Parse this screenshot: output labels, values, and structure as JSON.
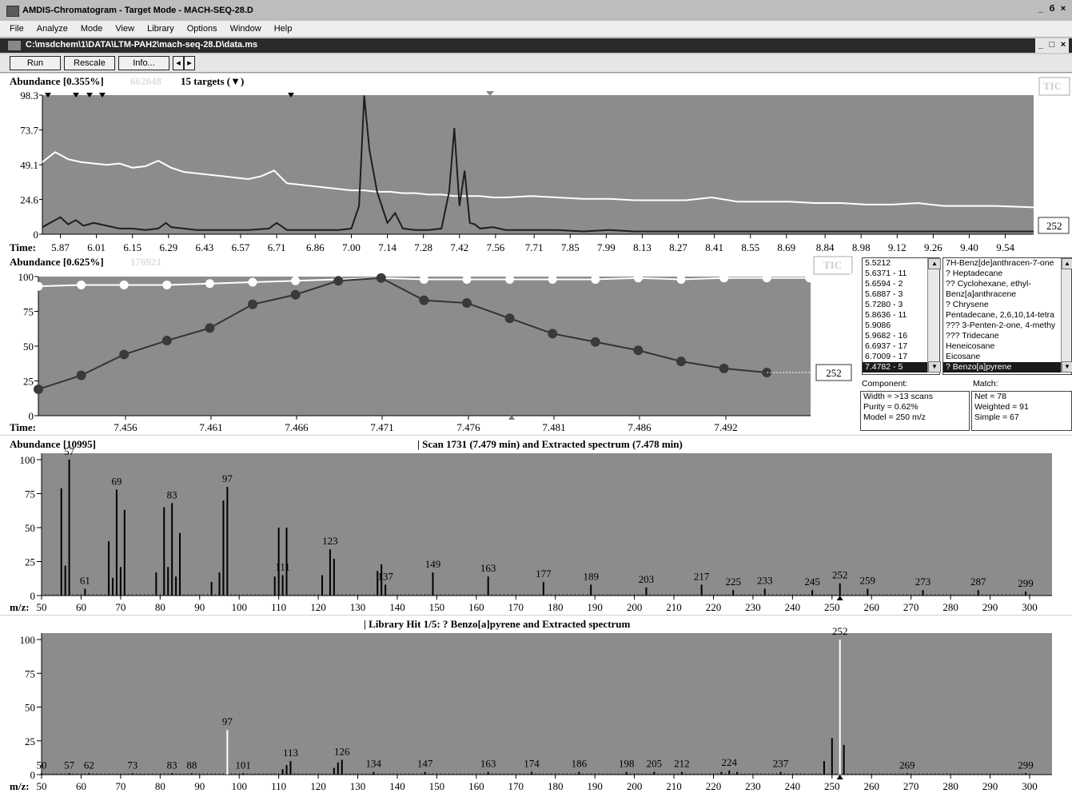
{
  "app": {
    "title": "AMDIS-Chromatogram - Target Mode - MACH-SEQ-28.D",
    "window_buttons": [
      "_",
      "б",
      "×"
    ],
    "menu": [
      "File",
      "Analyze",
      "Mode",
      "View",
      "Library",
      "Options",
      "Window",
      "Help"
    ],
    "doc_title": "C:\\msdchem\\1\\DATA\\LTM-PAH2\\mach-seq-28.D\\data.ms",
    "doc_buttons": [
      "_",
      "□",
      "×"
    ],
    "toolbar": {
      "run": "Run",
      "rescale": "Rescale",
      "info": "Info...",
      "left": "◂",
      "right": "▸"
    }
  },
  "chromatogram": {
    "abundance_label": "Abundance [0.355%]",
    "hidden_value": "662048",
    "targets_label": "15 targets (▼)",
    "tic_label": "TIC",
    "ion_box": "252",
    "time_label": "Time:",
    "y_ticks": [
      "98.3",
      "73.7",
      "49.1",
      "24.6",
      "0"
    ],
    "x_ticks": [
      "5.87",
      "6.01",
      "6.15",
      "6.29",
      "6.43",
      "6.57",
      "6.71",
      "6.86",
      "7.00",
      "7.14",
      "7.28",
      "7.42",
      "7.56",
      "7.71",
      "7.85",
      "7.99",
      "8.13",
      "8.27",
      "8.41",
      "8.55",
      "8.69",
      "8.84",
      "8.98",
      "9.12",
      "9.26",
      "9.40",
      "9.54"
    ]
  },
  "profile": {
    "abundance_label": "Abundance [0.625%]",
    "hidden_value": "176921",
    "tic_label": "TIC",
    "ion_box": "252",
    "time_label": "Time:",
    "y_ticks": [
      "100",
      "75",
      "50",
      "25",
      "0"
    ],
    "x_ticks": [
      "7.456",
      "7.461",
      "7.466",
      "7.471",
      "7.476",
      "7.481",
      "7.486",
      "7.492"
    ],
    "white_series": [
      93,
      94,
      94,
      94,
      95,
      96,
      97,
      98,
      99,
      98,
      98,
      98,
      98,
      98,
      99,
      98,
      99,
      99,
      99,
      99
    ],
    "grey_series": [
      19,
      29,
      44,
      54,
      63,
      80,
      87,
      97,
      99,
      83,
      81,
      70,
      59,
      53,
      47,
      39,
      34,
      31
    ]
  },
  "components_list": [
    {
      "label": "5.5212",
      "selected": false
    },
    {
      "label": "5.6371 -  11",
      "selected": false
    },
    {
      "label": "5.6594 -   2",
      "selected": false
    },
    {
      "label": "5.6887 -   3",
      "selected": false
    },
    {
      "label": "5.7280 -   3",
      "selected": false
    },
    {
      "label": "5.8636 -  11",
      "selected": false
    },
    {
      "label": "5.9086",
      "selected": false
    },
    {
      "label": "5.9682 -  16",
      "selected": false
    },
    {
      "label": "6.6937 -  17",
      "selected": false
    },
    {
      "label": "6.7009 -  17",
      "selected": false
    },
    {
      "label": "7.4782 -   5",
      "selected": true
    }
  ],
  "hits_list": [
    {
      "label": "7H-Benz[de]anthracen-7-one",
      "selected": false
    },
    {
      "label": "? Heptadecane",
      "selected": false
    },
    {
      "label": "?? Cyclohexane, ethyl-",
      "selected": false
    },
    {
      "label": "Benz[a]anthracene",
      "selected": false
    },
    {
      "label": "? Chrysene",
      "selected": false
    },
    {
      "label": "Pentadecane, 2,6,10,14-tetra",
      "selected": false
    },
    {
      "label": "??? 3-Penten-2-one, 4-methy",
      "selected": false
    },
    {
      "label": "??? Tridecane",
      "selected": false
    },
    {
      "label": "Heneicosane",
      "selected": false
    },
    {
      "label": "Eicosane",
      "selected": false
    },
    {
      "label": "? Benzo[a]pyrene",
      "selected": true
    }
  ],
  "component_info": {
    "title": "Component:",
    "lines": [
      "Width = >13 scans",
      "Purity = 0.62%",
      "Model = 250 m/z"
    ]
  },
  "match_info": {
    "title": "Match:",
    "lines": [
      "Net = 78",
      "Weighted = 91",
      "Simple = 67"
    ]
  },
  "scan_spectrum": {
    "abundance_label": "Abundance [10995]",
    "title": "| Scan 1731 (7.479 min) and   Extracted spectrum (7.478 min)",
    "mz_label": "m/z:",
    "y_ticks": [
      "100",
      "75",
      "50",
      "25",
      "0"
    ],
    "x_ticks": [
      "50",
      "60",
      "70",
      "80",
      "90",
      "100",
      "110",
      "120",
      "130",
      "140",
      "150",
      "160",
      "170",
      "180",
      "190",
      "200",
      "210",
      "220",
      "230",
      "240",
      "250",
      "260",
      "270",
      "280",
      "290",
      "300"
    ],
    "peak_labels": [
      "57",
      "61",
      "69",
      "83",
      "97",
      "111",
      "123",
      "137",
      "149",
      "163",
      "177",
      "189",
      "203",
      "217",
      "225",
      "233",
      "245",
      "252",
      "259",
      "273",
      "287",
      "299"
    ]
  },
  "library_spectrum": {
    "title": "| Library Hit 1/5:  ? Benzo[a]pyrene and   Extracted spectrum",
    "mz_label": "m/z:",
    "y_ticks": [
      "100",
      "75",
      "50",
      "25",
      "0"
    ],
    "x_ticks": [
      "50",
      "60",
      "70",
      "80",
      "90",
      "100",
      "110",
      "120",
      "130",
      "140",
      "150",
      "160",
      "170",
      "180",
      "190",
      "200",
      "210",
      "220",
      "230",
      "240",
      "250",
      "260",
      "270",
      "280",
      "290",
      "300"
    ],
    "peak_labels": [
      "50",
      "57",
      "62",
      "73",
      "83",
      "88",
      "97",
      "101",
      "113",
      "126",
      "134",
      "147",
      "163",
      "174",
      "186",
      "198",
      "205",
      "212",
      "224",
      "237",
      "252",
      "269",
      "299"
    ]
  },
  "chart_data": [
    {
      "type": "line",
      "title": "",
      "xlabel": "Time:",
      "ylabel": "Abundance [0.355%]",
      "xlim": [
        5.8,
        9.65
      ],
      "ylim": [
        0,
        98.3
      ],
      "series": [
        {
          "name": "",
          "x": [
            5.8,
            5.85,
            5.9,
            5.95,
            6.0,
            6.05,
            6.1,
            6.15,
            6.2,
            6.25,
            6.3,
            6.35,
            6.4,
            6.45,
            6.5,
            6.55,
            6.6,
            6.65,
            6.7,
            6.75,
            6.8,
            6.85,
            6.9,
            6.95,
            7.0,
            7.05,
            7.1,
            7.15,
            7.2,
            7.25,
            7.3,
            7.35,
            7.4,
            7.45,
            7.5,
            7.55,
            7.6,
            7.7,
            7.8,
            7.9,
            8.0,
            8.1,
            8.2,
            8.3,
            8.4,
            8.5,
            8.6,
            8.7,
            8.8,
            8.9,
            9.0,
            9.1,
            9.2,
            9.3,
            9.4,
            9.5,
            9.65
          ],
          "values": [
            51,
            58,
            53,
            51,
            50,
            49,
            50,
            47,
            48,
            52,
            47,
            44,
            43,
            42,
            41,
            40,
            39,
            41,
            45,
            36,
            35,
            34,
            33,
            32,
            31,
            31,
            30,
            30,
            29,
            29,
            28,
            28,
            27,
            27,
            27,
            26,
            26,
            27,
            26,
            25,
            25,
            24,
            24,
            24,
            26,
            23,
            23,
            23,
            22,
            22,
            21,
            21,
            22,
            20,
            20,
            20,
            19
          ]
        },
        {
          "name": "",
          "x": [
            5.8,
            5.85,
            5.87,
            5.9,
            5.93,
            5.96,
            6.0,
            6.05,
            6.1,
            6.15,
            6.2,
            6.25,
            6.28,
            6.3,
            6.35,
            6.4,
            6.5,
            6.6,
            6.68,
            6.71,
            6.75,
            6.85,
            6.95,
            7.0,
            7.03,
            7.05,
            7.07,
            7.1,
            7.14,
            7.17,
            7.2,
            7.25,
            7.3,
            7.35,
            7.38,
            7.4,
            7.42,
            7.44,
            7.46,
            7.48,
            7.5,
            7.55,
            7.6,
            7.7,
            7.8,
            7.9,
            8.0,
            8.1,
            8.2,
            8.3,
            8.4,
            8.5,
            8.6,
            8.7,
            8.8,
            8.9,
            9.0,
            9.1,
            9.2,
            9.3,
            9.4,
            9.5,
            9.65
          ],
          "values": [
            5,
            10,
            12,
            7,
            10,
            6,
            8,
            6,
            4,
            4,
            3,
            4,
            8,
            5,
            4,
            3,
            3,
            3,
            4,
            8,
            3,
            3,
            3,
            4,
            20,
            98,
            60,
            30,
            8,
            15,
            4,
            3,
            3,
            4,
            30,
            75,
            20,
            45,
            8,
            7,
            4,
            5,
            3,
            3,
            3,
            2,
            3,
            2,
            2,
            2,
            2,
            2,
            2,
            2,
            2,
            2,
            2,
            2,
            2,
            2,
            2,
            2,
            2
          ]
        }
      ]
    },
    {
      "type": "line",
      "title": "",
      "xlabel": "Time:",
      "ylabel": "Abundance [0.625%]",
      "ylim": [
        0,
        100
      ],
      "series": [
        {
          "name": "",
          "values": [
            93,
            94,
            94,
            94,
            95,
            96,
            97,
            98,
            99,
            98,
            98,
            98,
            98,
            98,
            99,
            98,
            99,
            99,
            99,
            99
          ]
        },
        {
          "name": "",
          "values": [
            19,
            29,
            44,
            54,
            63,
            80,
            87,
            97,
            99,
            83,
            81,
            70,
            59,
            53,
            47,
            39,
            34,
            31
          ]
        }
      ]
    },
    {
      "type": "bar",
      "title": "| Scan 1731 (7.479 min) and   Extracted spectrum (7.478 min)",
      "xlabel": "m/z:",
      "ylabel": "Abundance [10995]",
      "xlim": [
        50,
        300
      ],
      "ylim": [
        0,
        100
      ],
      "x": [
        55,
        56,
        57,
        61,
        67,
        68,
        69,
        70,
        71,
        79,
        81,
        82,
        83,
        84,
        85,
        93,
        95,
        96,
        97,
        109,
        110,
        111,
        112,
        121,
        123,
        124,
        135,
        136,
        137,
        149,
        163,
        177,
        189,
        203,
        217,
        225,
        233,
        245,
        252,
        259,
        273,
        287,
        299
      ],
      "values": [
        79,
        22,
        100,
        5,
        40,
        13,
        78,
        21,
        63,
        17,
        65,
        21,
        68,
        14,
        46,
        10,
        17,
        70,
        80,
        14,
        50,
        15,
        50,
        15,
        34,
        27,
        18,
        23,
        8,
        17,
        14,
        10,
        8,
        6,
        8,
        4,
        5,
        4,
        9,
        5,
        4,
        4,
        3
      ]
    },
    {
      "type": "bar",
      "title": "| Library Hit 1/5:  ? Benzo[a]pyrene and   Extracted spectrum",
      "xlabel": "m/z:",
      "ylabel": "",
      "xlim": [
        50,
        300
      ],
      "ylim": [
        0,
        100
      ],
      "x": [
        50,
        57,
        62,
        73,
        83,
        88,
        97,
        101,
        111,
        112,
        113,
        124,
        125,
        126,
        134,
        147,
        163,
        174,
        186,
        198,
        205,
        212,
        222,
        224,
        226,
        237,
        248,
        250,
        252,
        253,
        269,
        299
      ],
      "values": [
        1,
        1,
        1,
        1,
        1,
        1,
        33,
        1,
        4,
        7,
        10,
        5,
        9,
        11,
        2,
        2,
        2,
        2,
        2,
        2,
        2,
        2,
        2,
        3,
        2,
        2,
        10,
        27,
        100,
        22,
        1,
        1
      ]
    }
  ]
}
